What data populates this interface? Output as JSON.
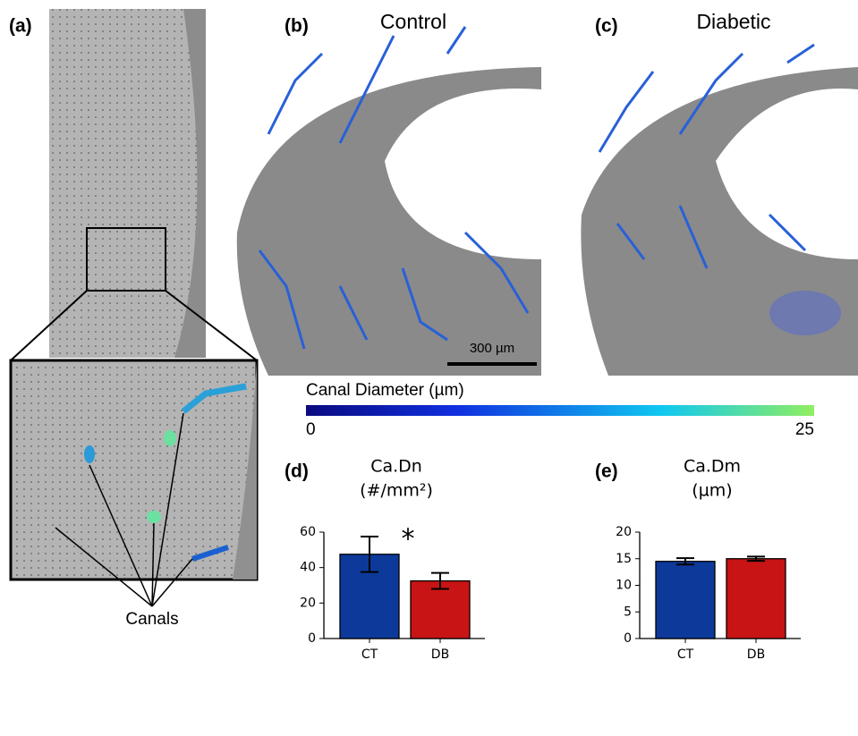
{
  "panel_labels": [
    "(a)",
    "(b)",
    "(c)",
    "(d)",
    "(e)"
  ],
  "images": {
    "b_title": "Control",
    "c_title": "Diabetic",
    "scale_bar": "300 µm",
    "annotation": "Canals"
  },
  "colorbar": {
    "label": "Canal Diameter (µm)",
    "lim": [
      0,
      25
    ],
    "ticks": [
      0,
      25
    ]
  },
  "chart_data": [
    {
      "type": "bar",
      "title": "Ca.Dn",
      "subtitle": "(#/mm²)",
      "categories": [
        "CT",
        "DB"
      ],
      "values": [
        47.5,
        32.5
      ],
      "errors": [
        10,
        4.5
      ],
      "colors": [
        "#0d3a9a",
        "#c81414"
      ],
      "ylim": [
        0,
        60
      ],
      "yticks": [
        0,
        20,
        40,
        60
      ],
      "annotation": "*"
    },
    {
      "type": "bar",
      "title": "Ca.Dm",
      "subtitle": "(µm)",
      "categories": [
        "CT",
        "DB"
      ],
      "values": [
        14.5,
        15.0
      ],
      "errors": [
        0.6,
        0.4
      ],
      "colors": [
        "#0d3a9a",
        "#c81414"
      ],
      "ylim": [
        0,
        20
      ],
      "yticks": [
        0,
        5,
        10,
        15,
        20
      ]
    }
  ]
}
